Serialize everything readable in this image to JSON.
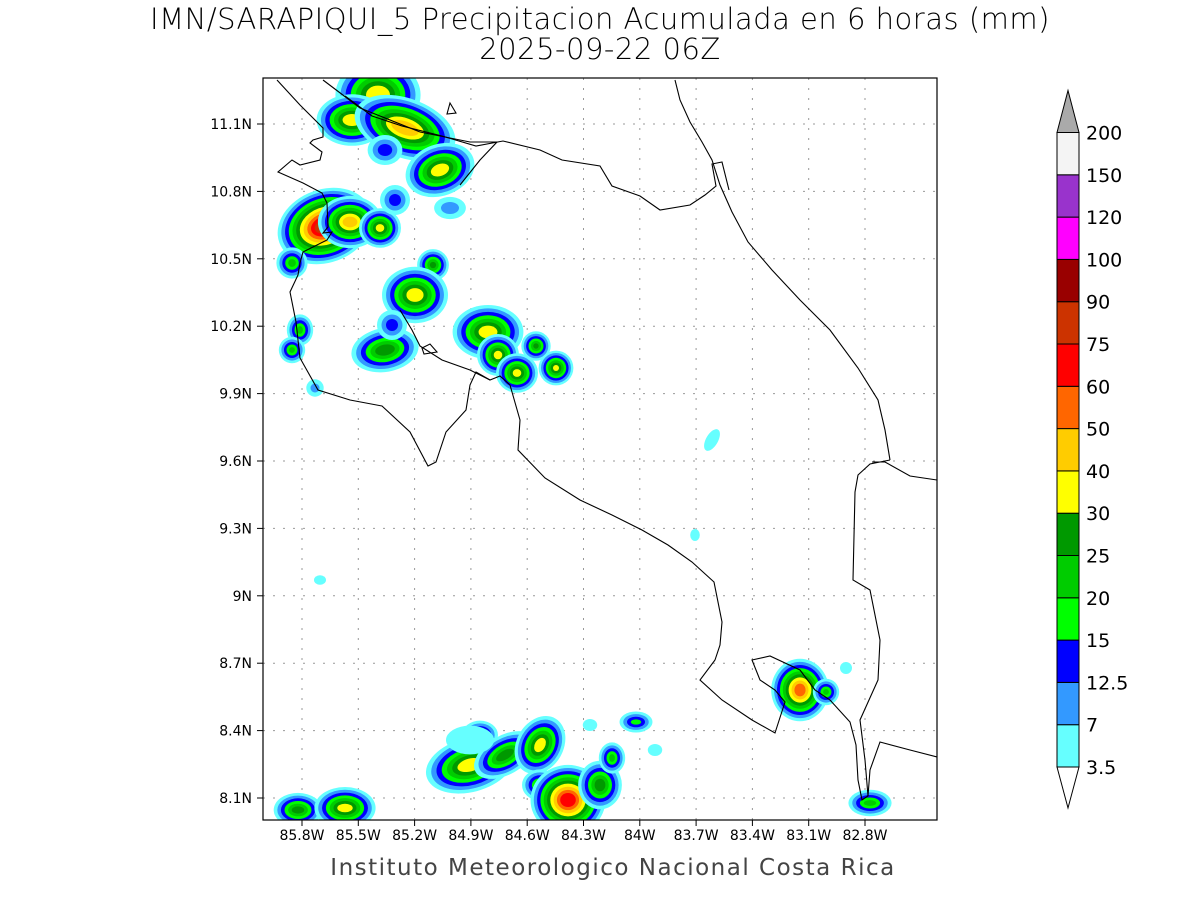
{
  "title": {
    "line1": "IMN/SARAPIQUI_5 Precipitacion Acumulada en 6 horas (mm)",
    "line2": "2025-09-22 06Z"
  },
  "credit": "Instituto Meteorologico Nacional Costa Rica",
  "map": {
    "lon_range": [
      -86.0,
      -82.4
    ],
    "lat_range": [
      8.0,
      11.3
    ],
    "grid": "dotted",
    "lon_ticks": [
      "85.8W",
      "85.5W",
      "85.2W",
      "84.9W",
      "84.6W",
      "84.3W",
      "84W",
      "83.7W",
      "83.4W",
      "83.1W",
      "82.8W"
    ],
    "lat_ticks": [
      "11.1N",
      "10.8N",
      "10.5N",
      "10.2N",
      "9.9N",
      "9.6N",
      "9.3N",
      "9N",
      "8.7N",
      "8.4N",
      "8.1N"
    ]
  },
  "colorbar": {
    "labels": [
      "3.5",
      "7",
      "12.5",
      "15",
      "20",
      "25",
      "30",
      "40",
      "50",
      "60",
      "75",
      "90",
      "100",
      "120",
      "150",
      "200"
    ],
    "colors": [
      "#66ffff",
      "#3399ff",
      "#0000ff",
      "#00ff00",
      "#00cc00",
      "#009900",
      "#ffff00",
      "#ffcc00",
      "#ff6600",
      "#ff0000",
      "#cc3300",
      "#990000",
      "#ff00ff",
      "#9933cc",
      "#f4f4f4"
    ],
    "over_color": "#aaaaaa",
    "under_color": "#ffffff"
  }
}
